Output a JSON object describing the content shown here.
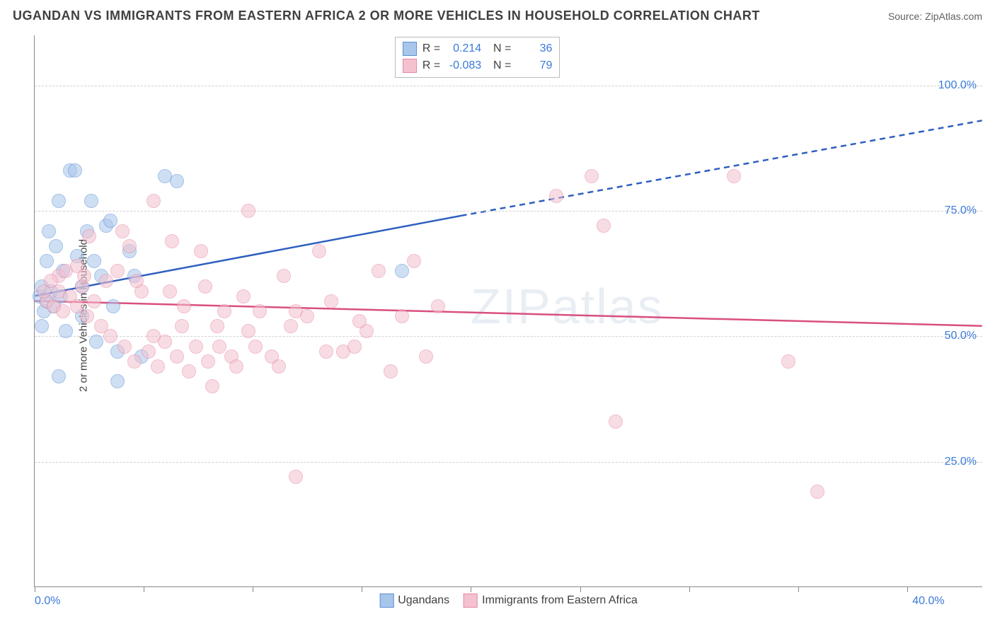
{
  "title": "UGANDAN VS IMMIGRANTS FROM EASTERN AFRICA 2 OR MORE VEHICLES IN HOUSEHOLD CORRELATION CHART",
  "source_label": "Source: ZipAtlas.com",
  "watermark": "ZIPatlas",
  "ylabel": "2 or more Vehicles in Household",
  "chart": {
    "type": "scatter",
    "xlim": [
      0,
      40
    ],
    "ylim": [
      0,
      110
    ],
    "xtick_labels": [
      "0.0%",
      "40.0%"
    ],
    "xtick_positions": [
      0,
      40
    ],
    "xtick_minor": [
      0,
      4.6,
      9.2,
      13.8,
      18.4,
      23,
      27.6,
      32.2,
      36.8
    ],
    "ytick_labels": [
      "25.0%",
      "50.0%",
      "75.0%",
      "100.0%"
    ],
    "ytick_positions": [
      25,
      50,
      75,
      100
    ],
    "background_color": "#ffffff",
    "grid_color": "#d0d0d0",
    "axis_color": "#888888",
    "tick_label_color": "#3a7ad9",
    "point_radius": 10,
    "point_opacity": 0.55,
    "series": [
      {
        "name": "Ugandans",
        "color_fill": "#a8c6ea",
        "color_stroke": "#5c8fd6",
        "R": "0.214",
        "N": "36",
        "trend": {
          "x1": 0,
          "y1": 58,
          "x2_solid": 18,
          "y2_solid": 74,
          "x2_dash": 40,
          "y2_dash": 93,
          "color": "#2e5fbf",
          "width": 2.5
        },
        "points": [
          [
            0.2,
            58
          ],
          [
            0.3,
            60
          ],
          [
            0.4,
            55
          ],
          [
            0.5,
            57
          ],
          [
            0.6,
            71
          ],
          [
            0.7,
            59
          ],
          [
            0.5,
            65
          ],
          [
            0.8,
            56
          ],
          [
            1.0,
            77
          ],
          [
            1.2,
            63
          ],
          [
            1.3,
            51
          ],
          [
            1.5,
            83
          ],
          [
            1.7,
            83
          ],
          [
            1.8,
            66
          ],
          [
            2.0,
            54
          ],
          [
            2.2,
            71
          ],
          [
            2.4,
            77
          ],
          [
            2.6,
            49
          ],
          [
            2.8,
            62
          ],
          [
            3.0,
            72
          ],
          [
            3.2,
            73
          ],
          [
            3.3,
            56
          ],
          [
            3.5,
            47
          ],
          [
            3.5,
            41
          ],
          [
            4.0,
            67
          ],
          [
            4.2,
            62
          ],
          [
            4.5,
            46
          ],
          [
            1.0,
            42
          ],
          [
            5.5,
            82
          ],
          [
            6.0,
            81
          ],
          [
            2.0,
            60
          ],
          [
            2.5,
            65
          ],
          [
            0.3,
            52
          ],
          [
            0.9,
            68
          ],
          [
            1.1,
            58
          ],
          [
            15.5,
            63
          ]
        ]
      },
      {
        "name": "Immigrants from Eastern Africa",
        "color_fill": "#f4c1cf",
        "color_stroke": "#e589a5",
        "R": "-0.083",
        "N": "79",
        "trend": {
          "x1": 0,
          "y1": 57,
          "x2_solid": 40,
          "y2_solid": 52,
          "x2_dash": 40,
          "y2_dash": 52,
          "color": "#d94f7e",
          "width": 2.5
        },
        "points": [
          [
            0.5,
            57
          ],
          [
            0.8,
            56
          ],
          [
            1.0,
            59
          ],
          [
            1.2,
            55
          ],
          [
            1.5,
            58
          ],
          [
            1.8,
            56
          ],
          [
            2.0,
            60
          ],
          [
            2.2,
            54
          ],
          [
            2.5,
            57
          ],
          [
            2.8,
            52
          ],
          [
            3.0,
            61
          ],
          [
            3.2,
            50
          ],
          [
            3.5,
            63
          ],
          [
            3.8,
            48
          ],
          [
            4.0,
            68
          ],
          [
            4.2,
            45
          ],
          [
            4.5,
            59
          ],
          [
            4.8,
            47
          ],
          [
            5.0,
            77
          ],
          [
            5.2,
            44
          ],
          [
            5.5,
            49
          ],
          [
            5.8,
            69
          ],
          [
            6.0,
            46
          ],
          [
            6.3,
            56
          ],
          [
            6.5,
            43
          ],
          [
            6.8,
            48
          ],
          [
            7.0,
            67
          ],
          [
            7.3,
            45
          ],
          [
            7.5,
            40
          ],
          [
            7.8,
            48
          ],
          [
            8.0,
            55
          ],
          [
            8.3,
            46
          ],
          [
            8.5,
            44
          ],
          [
            9.0,
            75
          ],
          [
            9.3,
            48
          ],
          [
            9.5,
            55
          ],
          [
            10.0,
            46
          ],
          [
            10.3,
            44
          ],
          [
            10.5,
            62
          ],
          [
            11.0,
            22
          ],
          [
            11.0,
            55
          ],
          [
            11.5,
            54
          ],
          [
            12.0,
            67
          ],
          [
            12.5,
            57
          ],
          [
            13.0,
            47
          ],
          [
            13.5,
            48
          ],
          [
            14.0,
            51
          ],
          [
            14.5,
            63
          ],
          [
            15.0,
            43
          ],
          [
            15.5,
            54
          ],
          [
            16.0,
            65
          ],
          [
            16.5,
            46
          ],
          [
            17.0,
            56
          ],
          [
            2.3,
            70
          ],
          [
            3.7,
            71
          ],
          [
            5.0,
            50
          ],
          [
            6.2,
            52
          ],
          [
            7.7,
            52
          ],
          [
            9.0,
            51
          ],
          [
            10.8,
            52
          ],
          [
            12.3,
            47
          ],
          [
            22.0,
            78
          ],
          [
            23.5,
            82
          ],
          [
            24.0,
            72
          ],
          [
            24.5,
            33
          ],
          [
            29.5,
            82
          ],
          [
            31.8,
            45
          ],
          [
            33.0,
            19
          ],
          [
            1.0,
            62
          ],
          [
            1.3,
            63
          ],
          [
            1.8,
            64
          ],
          [
            2.1,
            62
          ],
          [
            4.3,
            61
          ],
          [
            5.7,
            59
          ],
          [
            7.2,
            60
          ],
          [
            0.4,
            59
          ],
          [
            0.7,
            61
          ],
          [
            13.7,
            53
          ],
          [
            8.8,
            58
          ]
        ]
      }
    ]
  },
  "legend_bottom": [
    {
      "label": "Ugandans",
      "fill": "#a8c6ea",
      "stroke": "#5c8fd6"
    },
    {
      "label": "Immigrants from Eastern Africa",
      "fill": "#f4c1cf",
      "stroke": "#e589a5"
    }
  ]
}
